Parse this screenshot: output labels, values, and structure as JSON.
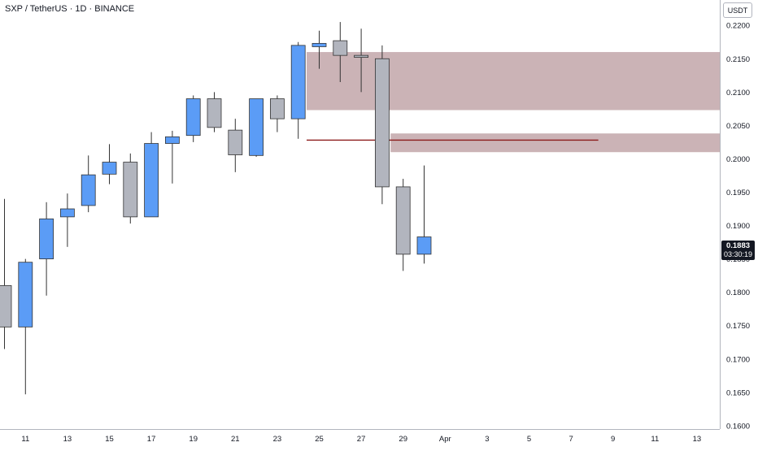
{
  "chart_title": "SXP / TetherUS · 1D · BINANCE",
  "currency": "USDT",
  "last_price": "0.1883",
  "countdown": "03:30:19",
  "colors": {
    "up": "#5b9cf6",
    "down": "#b2b5be",
    "wick": "#333333",
    "zone": "#a98086",
    "level_line": "#8b1a1a",
    "grid": "#d9dbe0",
    "axis_text": "#131722"
  },
  "chart_data": {
    "type": "candlestick",
    "symbol": "SXP / TetherUS",
    "interval": "1D",
    "exchange": "BINANCE",
    "ylim": [
      0.1595,
      0.2238
    ],
    "y_ticks": [
      "0.2200",
      "0.2150",
      "0.2100",
      "0.2050",
      "0.2000",
      "0.1950",
      "0.1900",
      "0.1850",
      "0.1800",
      "0.1750",
      "0.1700",
      "0.1650",
      "0.1600"
    ],
    "x_ticks": [
      "11",
      "13",
      "15",
      "17",
      "19",
      "21",
      "23",
      "25",
      "27",
      "29",
      "Apr",
      "3",
      "5",
      "7",
      "9",
      "11",
      "13"
    ],
    "x_tick_slots": [
      1,
      3,
      5,
      7,
      9,
      11,
      13,
      15,
      17,
      19,
      21,
      23,
      25,
      27,
      29,
      31,
      33
    ],
    "candles": [
      {
        "date": "Mar 10",
        "o": 0.181,
        "h": 0.194,
        "l": 0.1715,
        "c": 0.1748
      },
      {
        "date": "Mar 11",
        "o": 0.1748,
        "h": 0.185,
        "l": 0.1647,
        "c": 0.1845
      },
      {
        "date": "Mar 12",
        "o": 0.185,
        "h": 0.1935,
        "l": 0.1795,
        "c": 0.191
      },
      {
        "date": "Mar 13",
        "o": 0.1913,
        "h": 0.1948,
        "l": 0.1868,
        "c": 0.1925
      },
      {
        "date": "Mar 14",
        "o": 0.193,
        "h": 0.2005,
        "l": 0.192,
        "c": 0.1976
      },
      {
        "date": "Mar 15",
        "o": 0.1977,
        "h": 0.2022,
        "l": 0.1962,
        "c": 0.1995
      },
      {
        "date": "Mar 16",
        "o": 0.1995,
        "h": 0.2008,
        "l": 0.1903,
        "c": 0.1913
      },
      {
        "date": "Mar 17",
        "o": 0.1913,
        "h": 0.204,
        "l": 0.1913,
        "c": 0.2023
      },
      {
        "date": "Mar 18",
        "o": 0.2023,
        "h": 0.2042,
        "l": 0.1963,
        "c": 0.2033
      },
      {
        "date": "Mar 19",
        "o": 0.2035,
        "h": 0.2095,
        "l": 0.2025,
        "c": 0.209
      },
      {
        "date": "Mar 20",
        "o": 0.209,
        "h": 0.21,
        "l": 0.204,
        "c": 0.2047
      },
      {
        "date": "Mar 21",
        "o": 0.2043,
        "h": 0.206,
        "l": 0.198,
        "c": 0.2006
      },
      {
        "date": "Mar 22",
        "o": 0.2005,
        "h": 0.209,
        "l": 0.2003,
        "c": 0.209
      },
      {
        "date": "Mar 23",
        "o": 0.209,
        "h": 0.2095,
        "l": 0.204,
        "c": 0.206
      },
      {
        "date": "Mar 24",
        "o": 0.206,
        "h": 0.2175,
        "l": 0.203,
        "c": 0.217
      },
      {
        "date": "Mar 25",
        "o": 0.2168,
        "h": 0.2192,
        "l": 0.2135,
        "c": 0.2173
      },
      {
        "date": "Mar 26",
        "o": 0.2177,
        "h": 0.2205,
        "l": 0.2115,
        "c": 0.2155
      },
      {
        "date": "Mar 27",
        "o": 0.2155,
        "h": 0.2195,
        "l": 0.21,
        "c": 0.2152
      },
      {
        "date": "Mar 28",
        "o": 0.215,
        "h": 0.217,
        "l": 0.1932,
        "c": 0.1958
      },
      {
        "date": "Mar 29",
        "o": 0.1958,
        "h": 0.197,
        "l": 0.1832,
        "c": 0.1857
      },
      {
        "date": "Mar 30",
        "o": 0.1857,
        "h": 0.199,
        "l": 0.1843,
        "c": 0.1883
      }
    ],
    "zones": [
      {
        "from_slot": 14.4,
        "to_slot": 35.0,
        "top": 0.216,
        "bottom": 0.2073
      },
      {
        "from_slot": 18.4,
        "to_slot": 35.0,
        "top": 0.2038,
        "bottom": 0.201
      }
    ],
    "level_lines": [
      {
        "from_slot": 14.4,
        "to_slot": 28.3,
        "price": 0.2028
      }
    ],
    "grid": false,
    "legend": "none"
  }
}
